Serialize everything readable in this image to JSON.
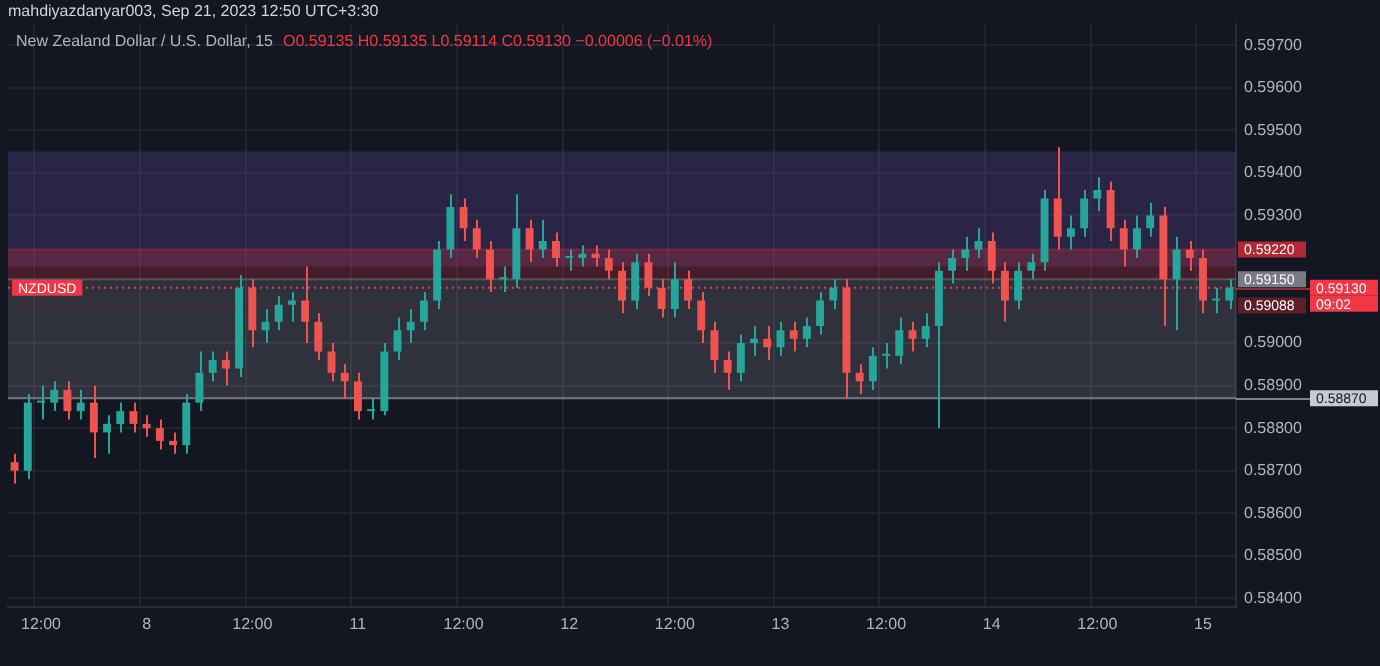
{
  "chart_data": {
    "type": "candlestick",
    "title": "New Zealand Dollar / U.S. Dollar, 15",
    "subtitle": "O0.59135 H0.59135 L0.59114 C0.59130 −0.00006 (−0.01%)",
    "annotations": [
      "mahdiyazdanyar003, Sep 21, 2023 12:50 UTC+3:30",
      "NZDUSD",
      "09:02"
    ],
    "categories": [
      null,
      null,
      "12:00",
      null,
      null,
      null,
      null,
      null,
      null,
      null,
      "8",
      null,
      null,
      null,
      null,
      null,
      null,
      null,
      "12:00",
      null,
      null,
      null,
      null,
      null,
      null,
      null,
      "11",
      null,
      null,
      null,
      null,
      null,
      null,
      null,
      "12:00",
      null,
      null,
      null,
      null,
      null,
      null,
      null,
      "12",
      null,
      null,
      null,
      null,
      null,
      null,
      null,
      "12:00",
      null,
      null,
      null,
      null,
      null,
      null,
      null,
      "13",
      null,
      null,
      null,
      null,
      null,
      null,
      null,
      "12:00",
      null,
      null,
      null,
      null,
      null,
      null,
      null,
      "14",
      null,
      null,
      null,
      null,
      null,
      null,
      null,
      "12:00",
      null,
      null,
      null,
      null,
      null,
      null,
      null,
      "15",
      null,
      null
    ],
    "ohlc": [
      [
        0.5872,
        0.5874,
        0.5867,
        0.587
      ],
      [
        0.587,
        0.5888,
        0.5868,
        0.5886
      ],
      [
        0.5886,
        0.589,
        0.5882,
        0.5886
      ],
      [
        0.5886,
        0.5891,
        0.5884,
        0.5889
      ],
      [
        0.5889,
        0.5891,
        0.5882,
        0.5884
      ],
      [
        0.5884,
        0.5889,
        0.5882,
        0.5886
      ],
      [
        0.5886,
        0.589,
        0.5873,
        0.5879
      ],
      [
        0.5879,
        0.5883,
        0.5874,
        0.5881
      ],
      [
        0.5881,
        0.5886,
        0.5879,
        0.5884
      ],
      [
        0.5884,
        0.5886,
        0.5879,
        0.5881
      ],
      [
        0.5881,
        0.5883,
        0.5878,
        0.588
      ],
      [
        0.588,
        0.5882,
        0.5875,
        0.5877
      ],
      [
        0.5877,
        0.5879,
        0.5874,
        0.5876
      ],
      [
        0.5876,
        0.5888,
        0.5874,
        0.5886
      ],
      [
        0.5886,
        0.5898,
        0.5884,
        0.5893
      ],
      [
        0.5893,
        0.5898,
        0.5891,
        0.5896
      ],
      [
        0.5896,
        0.5898,
        0.589,
        0.5894
      ],
      [
        0.5894,
        0.5916,
        0.5892,
        0.5913
      ],
      [
        0.5913,
        0.5915,
        0.5899,
        0.5903
      ],
      [
        0.5903,
        0.5908,
        0.59,
        0.5905
      ],
      [
        0.5905,
        0.5911,
        0.5903,
        0.5909
      ],
      [
        0.5909,
        0.5912,
        0.5905,
        0.591
      ],
      [
        0.591,
        0.5918,
        0.59,
        0.5905
      ],
      [
        0.5905,
        0.5907,
        0.5896,
        0.5898
      ],
      [
        0.5898,
        0.59,
        0.5891,
        0.5893
      ],
      [
        0.5893,
        0.5895,
        0.5887,
        0.5891
      ],
      [
        0.5891,
        0.5893,
        0.5882,
        0.5884
      ],
      [
        0.5884,
        0.5887,
        0.5882,
        0.5884
      ],
      [
        0.5884,
        0.59,
        0.5883,
        0.5898
      ],
      [
        0.5898,
        0.5906,
        0.5896,
        0.5903
      ],
      [
        0.5903,
        0.5908,
        0.59,
        0.5905
      ],
      [
        0.5905,
        0.5912,
        0.5903,
        0.591
      ],
      [
        0.591,
        0.5924,
        0.5908,
        0.5922
      ],
      [
        0.5922,
        0.5935,
        0.592,
        0.5932
      ],
      [
        0.5932,
        0.5934,
        0.5924,
        0.5927
      ],
      [
        0.5927,
        0.5929,
        0.592,
        0.5922
      ],
      [
        0.5922,
        0.5924,
        0.5912,
        0.5915
      ],
      [
        0.5915,
        0.5918,
        0.5912,
        0.5915
      ],
      [
        0.5915,
        0.5935,
        0.5913,
        0.5927
      ],
      [
        0.5927,
        0.5929,
        0.5919,
        0.5922
      ],
      [
        0.5922,
        0.5929,
        0.592,
        0.5924
      ],
      [
        0.5924,
        0.5926,
        0.5918,
        0.592
      ],
      [
        0.592,
        0.5922,
        0.5917,
        0.592
      ],
      [
        0.592,
        0.5923,
        0.5918,
        0.5921
      ],
      [
        0.5921,
        0.5923,
        0.5918,
        0.592
      ],
      [
        0.592,
        0.5922,
        0.5915,
        0.5917
      ],
      [
        0.5917,
        0.5919,
        0.5907,
        0.591
      ],
      [
        0.591,
        0.5921,
        0.5908,
        0.5919
      ],
      [
        0.5919,
        0.5921,
        0.5911,
        0.5913
      ],
      [
        0.5913,
        0.5915,
        0.5906,
        0.5908
      ],
      [
        0.5908,
        0.5919,
        0.5906,
        0.5915
      ],
      [
        0.5915,
        0.5917,
        0.5908,
        0.591
      ],
      [
        0.591,
        0.5912,
        0.59,
        0.5903
      ],
      [
        0.5903,
        0.5905,
        0.5893,
        0.5896
      ],
      [
        0.5896,
        0.5898,
        0.5889,
        0.5893
      ],
      [
        0.5893,
        0.5902,
        0.5891,
        0.59
      ],
      [
        0.59,
        0.5904,
        0.5897,
        0.5901
      ],
      [
        0.5901,
        0.5904,
        0.5896,
        0.5899
      ],
      [
        0.5899,
        0.5905,
        0.5897,
        0.5903
      ],
      [
        0.5903,
        0.5905,
        0.5898,
        0.5901
      ],
      [
        0.5901,
        0.5906,
        0.5899,
        0.5904
      ],
      [
        0.5904,
        0.5912,
        0.5902,
        0.591
      ],
      [
        0.591,
        0.5915,
        0.5908,
        0.5913
      ],
      [
        0.5913,
        0.5915,
        0.5887,
        0.5893
      ],
      [
        0.5893,
        0.5895,
        0.5888,
        0.5891
      ],
      [
        0.5891,
        0.5899,
        0.5889,
        0.5897
      ],
      [
        0.5897,
        0.59,
        0.5894,
        0.5897
      ],
      [
        0.5897,
        0.5906,
        0.5895,
        0.5903
      ],
      [
        0.5903,
        0.5905,
        0.5898,
        0.5901
      ],
      [
        0.5901,
        0.5907,
        0.5899,
        0.5904
      ],
      [
        0.5904,
        0.5919,
        0.588,
        0.5917
      ],
      [
        0.5917,
        0.5922,
        0.5914,
        0.592
      ],
      [
        0.592,
        0.5925,
        0.5917,
        0.5922
      ],
      [
        0.5922,
        0.5927,
        0.592,
        0.5924
      ],
      [
        0.5924,
        0.5926,
        0.5914,
        0.5917
      ],
      [
        0.5917,
        0.5919,
        0.5905,
        0.591
      ],
      [
        0.591,
        0.5919,
        0.5908,
        0.5917
      ],
      [
        0.5917,
        0.5921,
        0.5915,
        0.5919
      ],
      [
        0.5919,
        0.5936,
        0.5917,
        0.5934
      ],
      [
        0.5934,
        0.5946,
        0.5922,
        0.5925
      ],
      [
        0.5925,
        0.593,
        0.5922,
        0.5927
      ],
      [
        0.5927,
        0.5936,
        0.5925,
        0.5934
      ],
      [
        0.5934,
        0.5939,
        0.5931,
        0.5936
      ],
      [
        0.5936,
        0.5938,
        0.5924,
        0.5927
      ],
      [
        0.5927,
        0.5929,
        0.5918,
        0.5922
      ],
      [
        0.5922,
        0.593,
        0.592,
        0.5927
      ],
      [
        0.5927,
        0.5933,
        0.5925,
        0.593
      ],
      [
        0.593,
        0.5932,
        0.5904,
        0.5915
      ],
      [
        0.5915,
        0.5925,
        0.5903,
        0.5922
      ],
      [
        0.5922,
        0.5924,
        0.5917,
        0.592
      ],
      [
        0.592,
        0.5922,
        0.5907,
        0.591
      ],
      [
        0.591,
        0.5913,
        0.5907,
        0.591
      ],
      [
        0.591,
        0.5915,
        0.5908,
        0.5913
      ]
    ],
    "ylim": [
      0.5838,
      0.5975
    ],
    "yticks": [
      {
        "value": 0.584,
        "label": "0.58400"
      },
      {
        "value": 0.585,
        "label": "0.58500"
      },
      {
        "value": 0.586,
        "label": "0.58600"
      },
      {
        "value": 0.587,
        "label": "0.58700"
      },
      {
        "value": 0.588,
        "label": "0.58800"
      },
      {
        "value": 0.589,
        "label": "0.58900"
      },
      {
        "value": 0.59,
        "label": "0.59000"
      },
      {
        "value": 0.593,
        "label": "0.59300"
      },
      {
        "value": 0.594,
        "label": "0.59400"
      },
      {
        "value": 0.595,
        "label": "0.59500"
      },
      {
        "value": 0.596,
        "label": "0.59600"
      },
      {
        "value": 0.597,
        "label": "0.59700"
      }
    ],
    "bands": [
      {
        "axis": "y",
        "from": 0.5918,
        "to": 0.5945,
        "color": "#7e57c2"
      },
      {
        "axis": "y",
        "from": 0.5915,
        "to": 0.5922,
        "color": "#f23645"
      },
      {
        "axis": "y",
        "from": 0.5887,
        "to": 0.5915,
        "color": "#9598a1"
      }
    ],
    "ref_lines": [
      {
        "axis": "y",
        "value": 0.5922,
        "label": "0.59220",
        "color": "#b22833"
      },
      {
        "axis": "y",
        "value": 0.5915,
        "label": "0.59150",
        "color": "#787b86"
      },
      {
        "axis": "y",
        "value": 0.5913,
        "label": "0.59130",
        "color": "#f23645",
        "line_style": "dotted"
      },
      {
        "axis": "y",
        "value": 0.59088,
        "label": "0.59088",
        "color": "#5d1f25"
      },
      {
        "axis": "y",
        "value": 0.5887,
        "label": "0.58870",
        "color": "#c8cad0"
      }
    ],
    "grid": true,
    "legend": false
  }
}
